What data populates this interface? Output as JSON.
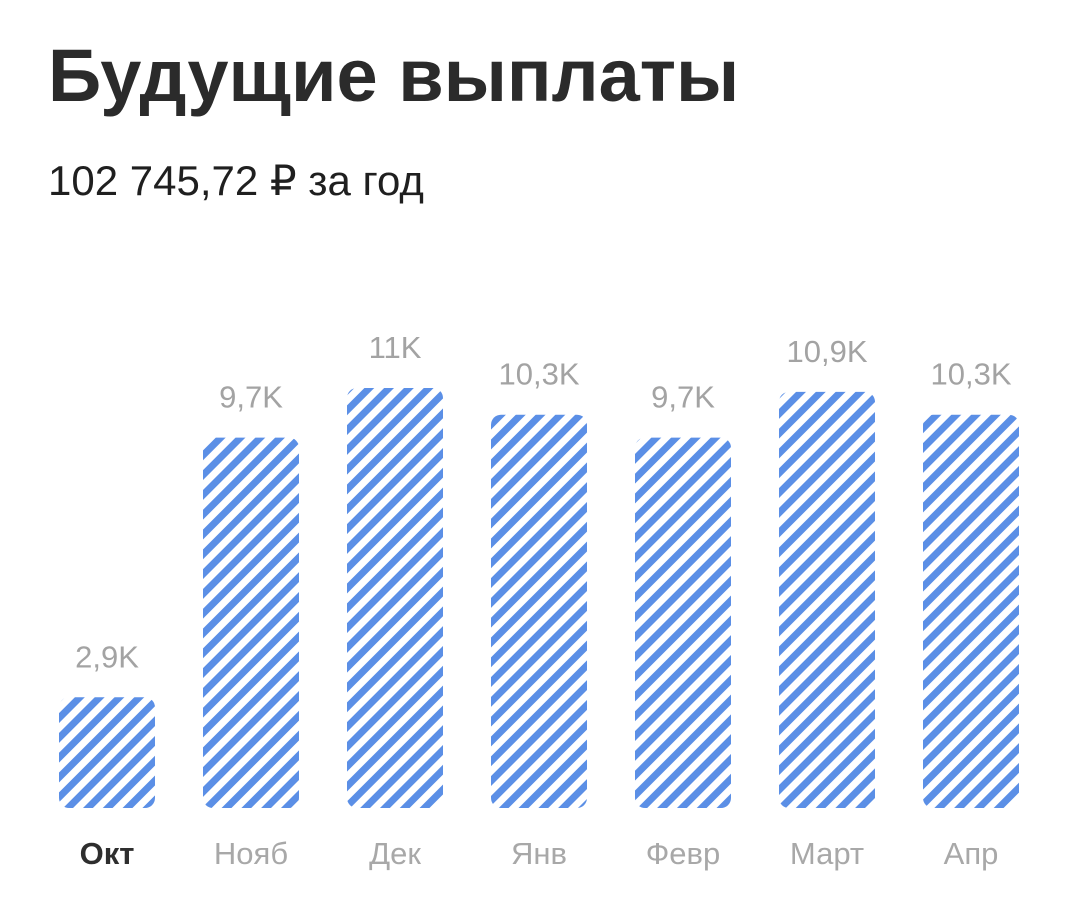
{
  "chart_data": {
    "type": "bar",
    "title": "Будущие выплаты",
    "subtitle": "102 745,72 ₽ за год",
    "categories": [
      "Окт",
      "Нояб",
      "Дек",
      "Янв",
      "Февр",
      "Март",
      "Апр"
    ],
    "values": [
      2.9,
      9.7,
      11,
      10.3,
      9.7,
      10.9,
      10.3
    ],
    "value_labels": [
      "2,9K",
      "9,7K",
      "11K",
      "10,3K",
      "9,7K",
      "10,9K",
      "10,3K"
    ],
    "color": "#5b8fe6",
    "highlight_index": 0
  }
}
